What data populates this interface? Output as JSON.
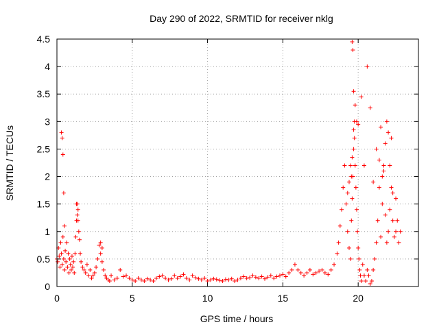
{
  "chart_data": {
    "type": "scatter",
    "title": "Day 290 of 2022, SRMTID for receiver nklg",
    "xlabel": "GPS time / hours",
    "ylabel": "SRMTID / TECUs",
    "xlim": [
      0,
      24
    ],
    "ylim": [
      0,
      4.5
    ],
    "xticks": [
      0,
      5,
      10,
      15,
      20
    ],
    "yticks": [
      0,
      0.5,
      1,
      1.5,
      2,
      2.5,
      3,
      3.5,
      4,
      4.5
    ],
    "grid": true,
    "marker": "+",
    "color": "#ff0000",
    "series": [
      {
        "name": "SRMTID",
        "x": [
          0.0,
          0.05,
          0.1,
          0.15,
          0.2,
          0.25,
          0.3,
          0.35,
          0.4,
          0.45,
          0.5,
          0.55,
          0.6,
          0.65,
          0.7,
          0.75,
          0.8,
          0.85,
          0.9,
          0.95,
          1.0,
          1.05,
          1.1,
          1.15,
          1.2,
          1.25,
          1.3,
          1.35,
          1.4,
          1.45,
          1.5,
          1.55,
          1.6,
          1.7,
          1.8,
          1.9,
          2.0,
          2.1,
          2.2,
          2.3,
          2.4,
          2.5,
          2.6,
          2.7,
          2.8,
          2.9,
          3.0,
          3.1,
          3.2,
          3.3,
          3.4,
          3.5,
          3.6,
          3.8,
          4.0,
          4.2,
          4.4,
          4.6,
          4.8,
          5.0,
          5.2,
          5.4,
          5.6,
          5.8,
          6.0,
          6.2,
          6.4,
          6.6,
          6.8,
          7.0,
          7.2,
          7.4,
          7.6,
          7.8,
          8.0,
          8.2,
          8.4,
          8.6,
          8.8,
          9.0,
          9.2,
          9.4,
          9.6,
          9.8,
          10.0,
          10.2,
          10.4,
          10.6,
          10.8,
          11.0,
          11.2,
          11.4,
          11.6,
          11.8,
          12.0,
          12.2,
          12.4,
          12.6,
          12.8,
          13.0,
          13.2,
          13.4,
          13.6,
          13.8,
          14.0,
          14.2,
          14.4,
          14.6,
          14.8,
          15.0,
          15.2,
          15.4,
          15.6,
          15.8,
          16.0,
          16.2,
          16.4,
          16.6,
          16.8,
          17.0,
          17.2,
          17.4,
          17.6,
          17.8,
          18.0,
          18.2,
          18.4,
          18.6,
          18.7,
          18.8,
          18.9,
          19.0,
          19.1,
          19.2,
          19.3,
          19.4,
          19.5,
          19.55,
          19.6,
          19.65,
          19.7,
          19.75,
          19.8,
          19.85,
          19.9,
          19.95,
          20.0,
          20.05,
          20.1,
          20.15,
          20.2,
          20.3,
          20.4,
          20.5,
          20.6,
          20.7,
          20.8,
          20.9,
          21.0,
          21.1,
          21.2,
          21.3,
          21.4,
          21.5,
          21.6,
          21.7,
          21.8,
          21.9,
          22.0,
          22.1,
          22.2,
          22.3,
          22.4,
          22.5,
          22.6,
          22.7,
          22.8,
          0.3,
          0.35,
          0.4,
          0.45,
          0.5,
          1.3,
          1.35,
          1.4,
          2.9,
          3.0,
          19.6,
          19.65,
          19.7,
          19.7,
          19.75,
          19.6,
          19.5,
          19.55,
          19.4,
          19.3,
          19.8,
          19.9,
          20.0,
          20.2,
          20.4,
          21.5,
          21.8,
          21.9,
          22.0,
          22.1,
          22.2,
          21.2,
          21.4,
          21.6,
          21.7,
          20.6,
          20.8,
          21.0,
          22.3,
          22.5
        ],
        "y": [
          0.5,
          0.45,
          0.7,
          0.55,
          0.35,
          0.8,
          0.6,
          0.4,
          0.9,
          0.5,
          0.3,
          0.65,
          0.45,
          0.8,
          0.35,
          0.6,
          0.25,
          0.5,
          0.4,
          0.3,
          0.55,
          0.35,
          0.45,
          0.25,
          0.6,
          0.9,
          1.2,
          1.5,
          1.4,
          1.0,
          0.85,
          0.6,
          0.45,
          0.35,
          0.3,
          0.25,
          0.4,
          0.2,
          0.3,
          0.15,
          0.2,
          0.25,
          0.35,
          0.5,
          0.75,
          0.6,
          0.45,
          0.3,
          0.2,
          0.15,
          0.12,
          0.1,
          0.2,
          0.12,
          0.15,
          0.3,
          0.18,
          0.2,
          0.15,
          0.12,
          0.1,
          0.15,
          0.12,
          0.1,
          0.14,
          0.12,
          0.1,
          0.15,
          0.18,
          0.2,
          0.15,
          0.12,
          0.14,
          0.2,
          0.15,
          0.18,
          0.22,
          0.15,
          0.12,
          0.2,
          0.16,
          0.14,
          0.12,
          0.15,
          0.1,
          0.12,
          0.14,
          0.13,
          0.11,
          0.1,
          0.13,
          0.12,
          0.14,
          0.1,
          0.12,
          0.15,
          0.18,
          0.15,
          0.16,
          0.2,
          0.17,
          0.15,
          0.18,
          0.14,
          0.17,
          0.2,
          0.15,
          0.18,
          0.2,
          0.22,
          0.18,
          0.25,
          0.3,
          0.4,
          0.3,
          0.25,
          0.2,
          0.25,
          0.3,
          0.22,
          0.25,
          0.28,
          0.3,
          0.25,
          0.22,
          0.3,
          0.4,
          0.6,
          0.8,
          1.1,
          1.4,
          1.8,
          2.2,
          1.5,
          1.0,
          0.7,
          0.5,
          1.2,
          1.6,
          2.0,
          2.5,
          3.0,
          2.2,
          1.8,
          1.4,
          1.0,
          0.7,
          0.5,
          0.3,
          0.2,
          0.1,
          0.4,
          0.2,
          0.1,
          0.3,
          0.2,
          0.05,
          0.1,
          0.3,
          0.5,
          0.8,
          1.2,
          1.8,
          0.9,
          1.5,
          2.2,
          1.3,
          0.8,
          1.0,
          1.4,
          1.8,
          1.2,
          0.9,
          1.0,
          1.2,
          0.8,
          1.0,
          2.8,
          2.7,
          2.4,
          1.7,
          1.1,
          1.5,
          1.3,
          1.2,
          0.8,
          0.7,
          4.45,
          4.3,
          3.55,
          2.85,
          2.7,
          2.35,
          2.2,
          2.0,
          1.9,
          1.7,
          3.3,
          3.0,
          2.95,
          3.45,
          2.2,
          2.9,
          2.6,
          3.0,
          2.8,
          2.2,
          2.7,
          2.5,
          2.3,
          2.0,
          2.1,
          4.0,
          3.25,
          1.9,
          1.7,
          1.6
        ]
      }
    ]
  }
}
